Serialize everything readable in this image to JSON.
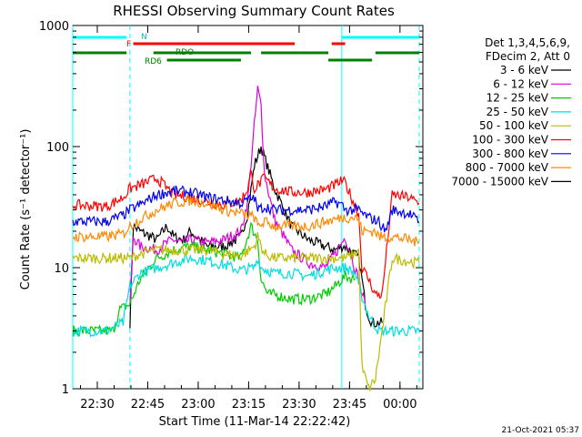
{
  "chart_data": {
    "type": "line",
    "title": "RHESSI Observing Summary Count Rates",
    "xlabel": "Start Time (11-Mar-14 22:22:42)",
    "ylabel": "Count Rate (s⁻¹ detector⁻¹)",
    "yscale": "log",
    "ylim": [
      1,
      1000
    ],
    "xlim": [
      "22:22:42",
      "00:06:50"
    ],
    "x_ticks": [
      "22:30",
      "22:45",
      "23:00",
      "23:15",
      "23:30",
      "23:45",
      "00:00"
    ],
    "y_ticks": [
      "1",
      "10",
      "100",
      "1000"
    ],
    "grid": false,
    "legend_position": "right",
    "legend_header": [
      "Det 1,3,4,5,6,9,",
      "FDecim 2, Att 0"
    ],
    "footer": "21-Oct-2021 05:37",
    "flag_labels": {
      "n": "N",
      "f": "F",
      "rdo": "RDO",
      "rd6": "RD6"
    },
    "x_unit": "minutes after 22:22:42",
    "series": [
      {
        "name": "3 - 6 keV",
        "color": "#000000",
        "x": [
          17,
          18,
          20,
          25,
          28,
          30,
          33,
          35,
          40,
          45,
          50,
          52,
          54,
          56,
          60,
          65,
          70,
          75,
          78,
          80,
          81,
          85,
          86,
          87,
          88,
          89,
          90,
          91,
          92
        ],
        "y": [
          3.5,
          22,
          20,
          17,
          22,
          18,
          17,
          20,
          15,
          15,
          18,
          28,
          70,
          100,
          45,
          22,
          17,
          15,
          14,
          15,
          15,
          12,
          8,
          5,
          4,
          3.5,
          3.5,
          3.5,
          3.5
        ]
      },
      {
        "name": "6 - 12 keV",
        "color": "#dd00dd",
        "x": [
          17,
          18,
          20,
          25,
          28,
          30,
          33,
          35,
          40,
          45,
          50,
          52,
          54,
          55,
          56,
          57,
          60,
          65,
          70,
          75,
          78,
          80,
          81,
          83,
          85,
          86,
          87
        ],
        "y": [
          5,
          18,
          15,
          14,
          16,
          17,
          16,
          17,
          16,
          17,
          20,
          35,
          150,
          300,
          220,
          60,
          25,
          14,
          11,
          10,
          13,
          16,
          18,
          12,
          8,
          6,
          5
        ]
      },
      {
        "name": "12 - 25 keV",
        "color": "#00cc00",
        "x": [
          0,
          12,
          14,
          17,
          20,
          25,
          30,
          35,
          40,
          45,
          50,
          52,
          53,
          55,
          56,
          58,
          60,
          65,
          70,
          75,
          78,
          80,
          81,
          84
        ],
        "y": [
          3,
          3,
          4.5,
          5,
          8,
          12,
          14,
          15,
          14,
          13,
          12,
          18,
          22,
          17,
          8,
          6,
          6,
          5.5,
          5.5,
          6,
          7,
          8,
          8.5,
          8
        ]
      },
      {
        "name": "25 - 50 keV",
        "color": "#00dddd",
        "x": [
          0,
          10,
          15,
          16,
          17,
          20,
          25,
          30,
          35,
          40,
          45,
          50,
          54,
          55,
          56,
          60,
          65,
          70,
          75,
          78,
          80,
          81,
          84,
          85,
          88,
          91,
          97,
          102,
          103
        ],
        "y": [
          3,
          3,
          3.5,
          5,
          7,
          9,
          10,
          11,
          12,
          11.5,
          10.5,
          9.5,
          10,
          12,
          10,
          9,
          9,
          8.5,
          9.5,
          10,
          10,
          10,
          9,
          7,
          4,
          3,
          3,
          3,
          3
        ]
      },
      {
        "name": "50 - 100 keV",
        "color": "#bbbb00",
        "x": [
          0,
          15,
          17,
          20,
          25,
          30,
          35,
          40,
          45,
          50,
          54,
          55,
          57,
          60,
          70,
          80,
          81,
          84,
          85,
          86,
          88,
          90,
          95,
          102,
          103
        ],
        "y": [
          12,
          12,
          12,
          13,
          14,
          14,
          14,
          14,
          13,
          12.5,
          15,
          18,
          13,
          12,
          12,
          12,
          12,
          13,
          14,
          1.5,
          1,
          1.2,
          12,
          11,
          11
        ]
      },
      {
        "name": "100 - 300 keV",
        "color": "#ff0000",
        "x": [
          0,
          10,
          15,
          17,
          20,
          25,
          30,
          35,
          40,
          45,
          50,
          52,
          53,
          54,
          55,
          57,
          60,
          65,
          70,
          75,
          78,
          80,
          81,
          85,
          86,
          88,
          90,
          92,
          95,
          100,
          102,
          103
        ],
        "y": [
          33,
          32,
          38,
          45,
          48,
          55,
          40,
          38,
          35,
          33,
          36,
          45,
          60,
          45,
          48,
          55,
          45,
          42,
          42,
          44,
          48,
          52,
          50,
          28,
          10,
          8,
          6,
          6,
          40,
          38,
          35,
          34
        ]
      },
      {
        "name": "300 - 800 keV",
        "color": "#0000ee",
        "x": [
          0,
          10,
          15,
          17,
          20,
          25,
          30,
          35,
          40,
          45,
          50,
          52,
          54,
          55,
          57,
          60,
          65,
          70,
          75,
          78,
          80,
          81,
          85,
          86,
          88,
          91,
          93,
          95,
          100,
          102,
          103
        ],
        "y": [
          24,
          24,
          27,
          30,
          33,
          40,
          43,
          42,
          38,
          36,
          34,
          36,
          38,
          30,
          32,
          30,
          30,
          30,
          32,
          35,
          33,
          30,
          30,
          28,
          26,
          24,
          20,
          30,
          28,
          25,
          24
        ]
      },
      {
        "name": "800 - 7000 keV",
        "color": "#ff8800",
        "x": [
          0,
          10,
          15,
          17,
          20,
          25,
          30,
          35,
          40,
          45,
          50,
          54,
          55,
          57,
          60,
          65,
          70,
          75,
          78,
          80,
          81,
          84,
          85,
          86,
          90,
          91,
          95,
          100,
          103
        ],
        "y": [
          18,
          18,
          19,
          22,
          25,
          30,
          34,
          36,
          34,
          30,
          28,
          26,
          22,
          24,
          22,
          22,
          22,
          24,
          25,
          26,
          26,
          26,
          25,
          20,
          20,
          18,
          18,
          17,
          16
        ]
      },
      {
        "name": "7000 - 15000 keV",
        "color": "#000000",
        "x": [
          0,
          103
        ],
        "y": [
          null,
          null
        ]
      }
    ],
    "vlines": {
      "cyan_solid": [
        0,
        80
      ],
      "cyan_dashed": [
        17,
        103
      ]
    },
    "flags": [
      {
        "name": "N",
        "color": "#00ffff",
        "segments": [
          [
            0,
            16
          ],
          [
            80,
            103
          ]
        ]
      },
      {
        "name": "F",
        "color": "#ff0000",
        "segments": [
          [
            18,
            66
          ],
          [
            77,
            81
          ]
        ]
      },
      {
        "name": "RDO",
        "color": "#008000",
        "segments": [
          [
            0,
            16
          ],
          [
            24,
            53
          ],
          [
            56,
            76
          ],
          [
            90,
            103
          ]
        ]
      },
      {
        "name": "RD6",
        "color": "#008000",
        "segments": [
          [
            28,
            50
          ],
          [
            76,
            89
          ]
        ]
      }
    ]
  }
}
